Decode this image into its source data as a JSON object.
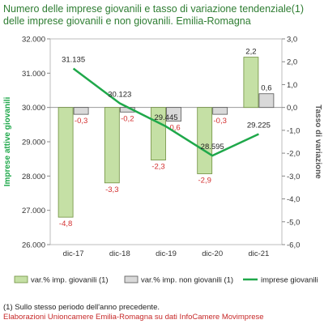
{
  "title": {
    "line1": "Numero delle imprese giovanili e tasso di variazione tendenziale(1)",
    "line2": "delle imprese giovanili e non giovanili. Emilia-Romagna"
  },
  "footnote": "(1) Sullo stesso periodo dell'anno precedente.",
  "source": "Elaborazioni Unioncamere Emilia-Romagna su dati InfoCamere Movimprese",
  "colors": {
    "title": "#2e7d32",
    "bar_young": "#c5e0a5",
    "bar_young_stroke": "#6f8f3e",
    "bar_nonyoung": "#d9d9d9",
    "bar_nonyoung_stroke": "#555555",
    "line": "#1fa84a",
    "neg_label": "#d32f2f",
    "pos_label": "#222222",
    "axis_text": "#333333",
    "left_axis_title": "#1fa84a",
    "right_axis_title": "#555555"
  },
  "chart_data": {
    "type": "bar",
    "categories": [
      "dic-17",
      "dic-18",
      "dic-19",
      "dic-20",
      "dic-21"
    ],
    "left_axis": {
      "label": "Imprese attive giovanili",
      "ticks": [
        "26.000",
        "27.000",
        "28.000",
        "29.000",
        "30.000",
        "31.000",
        "32.000"
      ],
      "range": [
        26000,
        32000
      ]
    },
    "right_axis": {
      "label": "Tasso di variazione",
      "ticks": [
        "-6,0",
        "-5,0",
        "-4,0",
        "-3,0",
        "-2,0",
        "-1,0",
        "0,0",
        "1,0",
        "2,0",
        "3,0"
      ],
      "range": [
        -6,
        3
      ]
    },
    "series": [
      {
        "name": "var.% imp. giovanili (1)",
        "kind": "bar",
        "axis": "right",
        "values": [
          -4.8,
          -3.3,
          -2.3,
          -2.9,
          2.2
        ],
        "labels": [
          "-4,8",
          "-3,3",
          "-2,3",
          "-2,9",
          "2,2"
        ]
      },
      {
        "name": "var.% imp. non giovanili (1)",
        "kind": "bar",
        "axis": "right",
        "values": [
          -0.3,
          -0.2,
          -0.6,
          -0.3,
          0.6
        ],
        "labels": [
          "-0,3",
          "-0,2",
          "-0,6",
          "-0,3",
          "0,6"
        ]
      },
      {
        "name": "imprese giovanili",
        "kind": "line",
        "axis": "left",
        "values": [
          31135,
          30123,
          29445,
          28595,
          29225
        ],
        "labels": [
          "31.135",
          "30.123",
          "29.445",
          "28.595",
          "29.225"
        ]
      }
    ],
    "legend_position": "bottom",
    "grid": false
  }
}
